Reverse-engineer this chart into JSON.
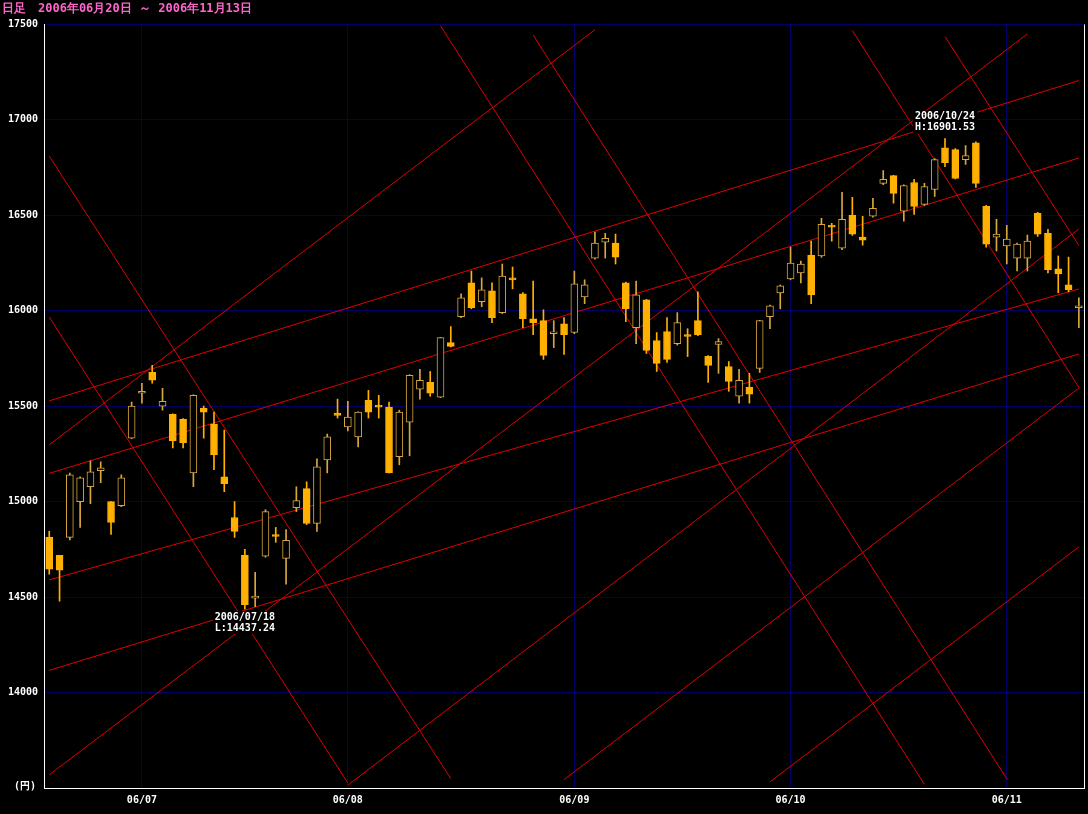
{
  "chart_data": {
    "type": "candlestick",
    "title": "日足　2006年06月20日 ～ 2006年11月13日",
    "ylabel": "(円)",
    "grid": true,
    "colors": [
      "#ffb000",
      "#ffb000",
      "#d8a840",
      "#d8a840",
      "#d8a840",
      "#d8a840",
      "#ffb000",
      "#d8a840",
      "#d8a840",
      "#d8a840",
      "#ffb000",
      "#d8a840",
      "#ffb000",
      "#ffb000",
      "#d8a840",
      "#ffb000",
      "#ffb000",
      "#ffb000",
      "#ffb000",
      "#ffb000",
      "#d8a840",
      "#d8a840",
      "#ffb000",
      "#d8a840",
      "#d8a840",
      "#ffb000",
      "#d8a840",
      "#d8a840",
      "#ffb000",
      "#d8a840",
      "#d8a840",
      "#ffb000",
      "#ffb000",
      "#ffb000",
      "#d8a840",
      "#d8a840",
      "#d8a840",
      "#ffb000",
      "#d8a840",
      "#ffb000",
      "#d8a840",
      "#ffb000",
      "#d8a840",
      "#ffb000",
      "#d8a840",
      "#ffb000",
      "#ffb000",
      "#ffb000",
      "#ffb000",
      "#d8a840",
      "#ffb000",
      "#d8a840",
      "#d8a840",
      "#d8a840",
      "#d8a840",
      "#ffb000",
      "#ffb000",
      "#d8a840",
      "#ffb000",
      "#ffb000",
      "#ffb000",
      "#d8a840",
      "#ffb000",
      "#ffb000",
      "#ffb000",
      "#d8a840",
      "#ffb000",
      "#d8a840",
      "#ffb000",
      "#d8a840",
      "#d8a840",
      "#d8a840",
      "#d8a840",
      "#d8a840",
      "#ffb000",
      "#d8a840",
      "#ffb000",
      "#d8a840",
      "#ffb000",
      "#ffb000",
      "#d8a840",
      "#d8a840",
      "#ffb000",
      "#d8a840",
      "#ffb000",
      "#d8a840",
      "#d8a840",
      "#ffb000",
      "#ffb000",
      "#d8a840",
      "#ffb000",
      "#ffb000",
      "#d8a840",
      "#d8a840",
      "#d8a840",
      "#d8a840",
      "#ffb000",
      "#ffb000",
      "#ffb000",
      "#ffb000",
      "#d8a840"
    ],
    "categories": [
      null,
      null,
      null,
      null,
      null,
      null,
      null,
      null,
      null,
      "06/07",
      null,
      null,
      null,
      null,
      null,
      null,
      null,
      null,
      null,
      null,
      null,
      null,
      null,
      null,
      null,
      null,
      null,
      null,
      null,
      "06/08",
      null,
      null,
      null,
      null,
      null,
      null,
      null,
      null,
      null,
      null,
      null,
      null,
      null,
      null,
      null,
      null,
      null,
      null,
      null,
      null,
      null,
      "06/09",
      null,
      null,
      null,
      null,
      null,
      null,
      null,
      null,
      null,
      null,
      null,
      null,
      null,
      null,
      null,
      null,
      null,
      null,
      null,
      null,
      "06/10",
      null,
      null,
      null,
      null,
      null,
      null,
      null,
      null,
      null,
      null,
      null,
      null,
      null,
      null,
      null,
      null,
      null,
      null,
      null,
      null,
      "06/11",
      null,
      null,
      null,
      null,
      null,
      null,
      null
    ],
    "ylim": [
      13500,
      17500
    ],
    "yticks": [
      14000,
      14500,
      15000,
      15500,
      16000,
      16500,
      17000,
      17500
    ],
    "ohlc": [
      [
        14813,
        14844,
        14620,
        14646
      ],
      [
        14719,
        14719,
        14479,
        14641
      ],
      [
        14813,
        15150,
        14800,
        15141
      ],
      [
        15000,
        15130,
        14865,
        15125
      ],
      [
        15078,
        15214,
        14990,
        15156
      ],
      [
        15162,
        15208,
        15099,
        15177
      ],
      [
        15000,
        15000,
        14828,
        14891
      ],
      [
        14979,
        15141,
        14974,
        15125
      ],
      [
        15333,
        15521,
        15330,
        15500
      ],
      [
        15568,
        15620,
        15516,
        15578
      ],
      [
        15677,
        15714,
        15620,
        15636
      ],
      [
        15500,
        15594,
        15479,
        15526
      ],
      [
        15458,
        15460,
        15281,
        15318
      ],
      [
        15432,
        15435,
        15281,
        15307
      ],
      [
        15151,
        15560,
        15078,
        15557
      ],
      [
        15490,
        15500,
        15333,
        15469
      ],
      [
        15406,
        15469,
        15167,
        15245
      ],
      [
        15130,
        15375,
        15052,
        15094
      ],
      [
        14917,
        15000,
        14813,
        14844
      ],
      [
        14719,
        14750,
        14437.24,
        14460
      ],
      [
        14495,
        14630,
        14450,
        14505
      ],
      [
        14714,
        14958,
        14709,
        14948
      ],
      [
        14828,
        14865,
        14787,
        14818
      ],
      [
        14703,
        14854,
        14568,
        14797
      ],
      [
        14969,
        15078,
        14948,
        15005
      ],
      [
        15068,
        15104,
        14880,
        14886
      ],
      [
        14886,
        15224,
        14844,
        15182
      ],
      [
        15219,
        15354,
        15151,
        15339
      ],
      [
        15462,
        15537,
        15438,
        15452
      ],
      [
        15391,
        15526,
        15370,
        15443
      ],
      [
        15339,
        15470,
        15287,
        15469
      ],
      [
        15531,
        15583,
        15438,
        15469
      ],
      [
        15505,
        15557,
        15438,
        15495
      ],
      [
        15495,
        15521,
        15150,
        15151
      ],
      [
        15235,
        15479,
        15193,
        15469
      ],
      [
        15417,
        15665,
        15240,
        15662
      ],
      [
        15589,
        15693,
        15537,
        15636
      ],
      [
        15625,
        15682,
        15552,
        15568
      ],
      [
        15547,
        15860,
        15545,
        15859
      ],
      [
        15833,
        15917,
        15810,
        15813
      ],
      [
        15969,
        16089,
        15964,
        16068
      ],
      [
        16146,
        16208,
        16010,
        16016
      ],
      [
        16047,
        16172,
        16021,
        16109
      ],
      [
        16104,
        16146,
        15938,
        15964
      ],
      [
        15990,
        16245,
        15985,
        16182
      ],
      [
        16172,
        16229,
        16115,
        16162
      ],
      [
        16089,
        16095,
        15912,
        15958
      ],
      [
        15958,
        16156,
        15875,
        15938
      ],
      [
        15948,
        16005,
        15745,
        15766
      ],
      [
        15880,
        15948,
        15807,
        15890
      ],
      [
        15932,
        15964,
        15771,
        15875
      ],
      [
        15886,
        16208,
        15880,
        16141
      ],
      [
        16073,
        16162,
        16037,
        16136
      ],
      [
        16276,
        16412,
        16270,
        16354
      ],
      [
        16359,
        16406,
        16276,
        16380
      ],
      [
        16354,
        16401,
        16245,
        16281
      ],
      [
        16146,
        16150,
        15943,
        16010
      ],
      [
        15911,
        16156,
        15828,
        16083
      ],
      [
        16057,
        16060,
        15776,
        15792
      ],
      [
        15844,
        15886,
        15682,
        15724
      ],
      [
        15891,
        15964,
        15729,
        15745
      ],
      [
        15828,
        15990,
        15820,
        15938
      ],
      [
        15875,
        15906,
        15760,
        15865
      ],
      [
        15948,
        16099,
        15870,
        15875
      ],
      [
        15761,
        15765,
        15625,
        15714
      ],
      [
        15823,
        15854,
        15672,
        15838
      ],
      [
        15708,
        15734,
        15578,
        15630
      ],
      [
        15552,
        15693,
        15516,
        15636
      ],
      [
        15599,
        15672,
        15516,
        15563
      ],
      [
        15698,
        15950,
        15677,
        15948
      ],
      [
        15969,
        16030,
        15906,
        16026
      ],
      [
        16094,
        16135,
        16010,
        16130
      ],
      [
        16167,
        16333,
        16162,
        16250
      ],
      [
        16198,
        16260,
        16146,
        16245
      ],
      [
        16292,
        16365,
        16037,
        16083
      ],
      [
        16287,
        16484,
        16280,
        16453
      ],
      [
        16448,
        16458,
        16365,
        16438
      ],
      [
        16328,
        16620,
        16320,
        16479
      ],
      [
        16500,
        16594,
        16395,
        16401
      ],
      [
        16386,
        16495,
        16344,
        16370
      ],
      [
        16495,
        16589,
        16490,
        16537
      ],
      [
        16667,
        16734,
        16660,
        16688
      ],
      [
        16708,
        16710,
        16563,
        16615
      ],
      [
        16521,
        16660,
        16469,
        16656
      ],
      [
        16672,
        16688,
        16505,
        16547
      ],
      [
        16557,
        16667,
        16552,
        16651
      ],
      [
        16635,
        16797,
        16599,
        16792
      ],
      [
        16854,
        16901.53,
        16755,
        16776
      ],
      [
        16844,
        16850,
        16690,
        16693
      ],
      [
        16792,
        16865,
        16766,
        16813
      ],
      [
        16880,
        16885,
        16646,
        16667
      ],
      [
        16547,
        16552,
        16333,
        16349
      ],
      [
        16386,
        16479,
        16313,
        16401
      ],
      [
        16339,
        16448,
        16245,
        16375
      ],
      [
        16276,
        16355,
        16208,
        16349
      ],
      [
        16276,
        16396,
        16208,
        16365
      ],
      [
        16510,
        16516,
        16390,
        16401
      ],
      [
        16406,
        16427,
        16198,
        16214
      ],
      [
        16219,
        16287,
        16094,
        16193
      ],
      [
        16136,
        16281,
        16099,
        16110
      ],
      [
        16016,
        16068,
        15912,
        16026
      ]
    ],
    "series": [
      {
        "type": "line",
        "color": "#e00000",
        "values": [
          15528,
          null,
          null,
          null,
          null,
          null,
          null,
          null,
          null,
          null,
          null,
          null,
          null,
          null,
          null,
          null,
          null,
          null,
          null,
          null,
          null,
          null,
          null,
          null,
          null,
          null,
          null,
          null,
          null,
          null,
          null,
          null,
          null,
          null,
          null,
          null,
          null,
          null,
          null,
          null,
          null,
          null,
          null,
          null,
          null,
          null,
          null,
          null,
          null,
          null,
          null,
          null,
          null,
          null,
          null,
          null,
          null,
          null,
          null,
          null,
          null,
          null,
          null,
          null,
          null,
          null,
          null,
          null,
          null,
          null,
          null,
          null,
          null,
          null,
          null,
          null,
          null,
          null,
          null,
          null,
          null,
          null,
          null,
          null,
          null,
          null,
          null,
          null,
          null,
          null,
          null,
          null,
          null,
          null,
          null,
          null,
          null,
          null,
          null,
          null,
          17206
        ]
      },
      {
        "type": "line",
        "color": "#e00000",
        "values": [
          15148,
          null,
          null,
          null,
          null,
          null,
          null,
          null,
          null,
          null,
          null,
          null,
          null,
          null,
          null,
          null,
          null,
          null,
          null,
          null,
          null,
          null,
          null,
          null,
          null,
          null,
          null,
          null,
          null,
          null,
          null,
          null,
          null,
          null,
          null,
          null,
          null,
          null,
          null,
          null,
          null,
          null,
          null,
          null,
          null,
          null,
          null,
          null,
          null,
          null,
          null,
          null,
          null,
          null,
          null,
          null,
          null,
          null,
          null,
          null,
          null,
          null,
          null,
          null,
          null,
          null,
          null,
          null,
          null,
          null,
          null,
          null,
          null,
          null,
          null,
          null,
          null,
          null,
          null,
          null,
          null,
          null,
          null,
          null,
          null,
          null,
          null,
          null,
          null,
          null,
          null,
          null,
          null,
          null,
          null,
          null,
          null,
          null,
          null,
          null,
          16800
        ]
      },
      {
        "type": "line",
        "color": "#e00000",
        "values": [
          14590,
          null,
          null,
          null,
          null,
          null,
          null,
          null,
          null,
          null,
          null,
          null,
          null,
          null,
          null,
          null,
          null,
          null,
          null,
          null,
          null,
          null,
          null,
          null,
          null,
          null,
          null,
          null,
          null,
          null,
          null,
          null,
          null,
          null,
          null,
          null,
          null,
          null,
          null,
          null,
          null,
          null,
          null,
          null,
          null,
          null,
          null,
          null,
          null,
          null,
          null,
          null,
          null,
          null,
          null,
          null,
          null,
          null,
          null,
          null,
          null,
          null,
          null,
          null,
          null,
          null,
          null,
          null,
          null,
          null,
          null,
          null,
          null,
          null,
          null,
          null,
          null,
          null,
          null,
          null,
          null,
          null,
          null,
          null,
          null,
          null,
          null,
          null,
          null,
          null,
          null,
          null,
          null,
          null,
          null,
          null,
          null,
          null,
          null,
          null,
          16114
        ]
      },
      {
        "type": "line",
        "color": "#e00000",
        "values": [
          14116,
          null,
          null,
          null,
          null,
          null,
          null,
          null,
          null,
          null,
          null,
          null,
          null,
          null,
          null,
          null,
          null,
          null,
          null,
          null,
          null,
          null,
          null,
          null,
          null,
          null,
          null,
          null,
          null,
          null,
          null,
          null,
          null,
          null,
          null,
          null,
          null,
          null,
          null,
          null,
          null,
          null,
          null,
          null,
          null,
          null,
          null,
          null,
          null,
          null,
          null,
          null,
          null,
          null,
          null,
          null,
          null,
          null,
          null,
          null,
          null,
          null,
          null,
          null,
          null,
          null,
          null,
          null,
          null,
          null,
          null,
          null,
          null,
          null,
          null,
          null,
          null,
          null,
          null,
          null,
          null,
          null,
          null,
          null,
          null,
          null,
          null,
          null,
          null,
          null,
          null,
          null,
          null,
          null,
          null,
          null,
          null,
          null,
          null,
          null,
          15774
        ]
      },
      {
        "type": "line",
        "color": "#e00000",
        "values": [
          15298,
          null,
          null,
          null,
          null,
          null,
          null,
          null,
          null,
          null,
          null,
          null,
          null,
          null,
          null,
          null,
          null,
          null,
          null,
          null,
          null,
          null,
          null,
          null,
          null,
          null,
          null,
          null,
          null,
          null,
          null,
          null,
          null,
          null,
          null,
          null,
          null,
          null,
          null,
          null,
          null,
          null,
          null,
          null,
          null,
          null,
          null,
          null,
          null,
          null,
          null,
          null,
          null,
          17472,
          null,
          null,
          null,
          null,
          null,
          null,
          null,
          null,
          null,
          null,
          null,
          null,
          null,
          null,
          null,
          null,
          null,
          null,
          null,
          null,
          null,
          null,
          null,
          null,
          null,
          null,
          null,
          null,
          null,
          null,
          null,
          null,
          null,
          null,
          null,
          null,
          null,
          null,
          null,
          null,
          null,
          null,
          null,
          null,
          null,
          null,
          null
        ]
      },
      {
        "type": "line",
        "color": "#e00000",
        "values": [
          13569,
          null,
          null,
          null,
          null,
          null,
          null,
          null,
          null,
          null,
          null,
          null,
          null,
          null,
          null,
          null,
          null,
          null,
          null,
          null,
          null,
          null,
          null,
          null,
          null,
          null,
          null,
          null,
          null,
          null,
          null,
          null,
          null,
          null,
          null,
          null,
          null,
          null,
          null,
          null,
          null,
          null,
          null,
          null,
          null,
          null,
          null,
          null,
          null,
          null,
          null,
          null,
          null,
          null,
          null,
          null,
          null,
          null,
          null,
          null,
          null,
          null,
          null,
          null,
          null,
          null,
          null,
          null,
          null,
          null,
          null,
          null,
          null,
          null,
          null,
          null,
          null,
          null,
          null,
          null,
          null,
          null,
          null,
          null,
          null,
          null,
          null,
          null,
          null,
          null,
          null,
          null,
          null,
          null,
          null,
          17450,
          null,
          null,
          null,
          null,
          null
        ]
      },
      {
        "type": "line",
        "color": "#e00000",
        "values": [
          null,
          null,
          null,
          null,
          null,
          null,
          null,
          null,
          null,
          null,
          null,
          null,
          null,
          null,
          null,
          null,
          null,
          null,
          null,
          null,
          null,
          null,
          null,
          null,
          null,
          null,
          null,
          null,
          null,
          13515,
          null,
          null,
          null,
          null,
          null,
          null,
          null,
          null,
          null,
          null,
          null,
          null,
          null,
          null,
          null,
          null,
          null,
          null,
          null,
          null,
          null,
          null,
          null,
          null,
          null,
          null,
          null,
          null,
          null,
          null,
          null,
          null,
          null,
          null,
          null,
          null,
          null,
          null,
          null,
          null,
          null,
          null,
          null,
          null,
          null,
          null,
          null,
          null,
          null,
          null,
          null,
          null,
          null,
          null,
          null,
          null,
          null,
          null,
          null,
          null,
          null,
          null,
          null,
          null,
          null,
          null,
          null,
          null,
          null,
          null,
          16428
        ]
      },
      {
        "type": "line",
        "color": "#e00000",
        "values": [
          null,
          null,
          null,
          null,
          null,
          null,
          null,
          null,
          null,
          null,
          null,
          null,
          null,
          null,
          null,
          null,
          null,
          null,
          null,
          null,
          null,
          null,
          null,
          null,
          null,
          null,
          null,
          null,
          null,
          null,
          null,
          null,
          null,
          null,
          null,
          null,
          null,
          null,
          null,
          null,
          null,
          null,
          null,
          null,
          null,
          null,
          null,
          null,
          null,
          null,
          13544,
          null,
          null,
          null,
          null,
          null,
          null,
          null,
          null,
          null,
          null,
          null,
          null,
          null,
          null,
          null,
          null,
          null,
          null,
          null,
          null,
          null,
          null,
          null,
          null,
          null,
          null,
          null,
          null,
          null,
          null,
          null,
          null,
          null,
          null,
          null,
          null,
          null,
          null,
          null,
          null,
          null,
          null,
          null,
          null,
          null,
          null,
          null,
          null,
          null,
          15595
        ]
      },
      {
        "type": "line",
        "color": "#e00000",
        "values": [
          null,
          null,
          null,
          null,
          null,
          null,
          null,
          null,
          null,
          null,
          null,
          null,
          null,
          null,
          null,
          null,
          null,
          null,
          null,
          null,
          null,
          null,
          null,
          null,
          null,
          null,
          null,
          null,
          null,
          null,
          null,
          null,
          null,
          null,
          null,
          null,
          null,
          null,
          null,
          null,
          null,
          null,
          null,
          null,
          null,
          null,
          null,
          null,
          null,
          null,
          null,
          null,
          null,
          null,
          null,
          null,
          null,
          null,
          null,
          null,
          null,
          null,
          null,
          null,
          null,
          null,
          null,
          null,
          null,
          null,
          13532,
          null,
          null,
          null,
          null,
          null,
          null,
          null,
          null,
          null,
          null,
          null,
          null,
          null,
          null,
          null,
          null,
          null,
          null,
          null,
          null,
          null,
          null,
          null,
          null,
          null,
          null,
          null,
          null,
          null,
          14763
        ]
      },
      {
        "type": "line",
        "color": "#e00000",
        "values": [
          16810,
          null,
          null,
          null,
          null,
          null,
          null,
          null,
          null,
          null,
          null,
          null,
          null,
          null,
          null,
          null,
          null,
          null,
          null,
          null,
          null,
          null,
          null,
          null,
          null,
          null,
          null,
          null,
          null,
          null,
          null,
          null,
          null,
          null,
          null,
          null,
          null,
          null,
          null,
          13549,
          null,
          null,
          null,
          null,
          null,
          null,
          null,
          null,
          null,
          null,
          null,
          null,
          null,
          null,
          null,
          null,
          null,
          null,
          null,
          null,
          null,
          null,
          null,
          null,
          null,
          null,
          null,
          null,
          null,
          null,
          null,
          null,
          null,
          null,
          null,
          null,
          null,
          null,
          null,
          null,
          null,
          null,
          null,
          null,
          null,
          null,
          null,
          null,
          null,
          null,
          null,
          null,
          null,
          null,
          null,
          null,
          null,
          null,
          null,
          null,
          null
        ]
      },
      {
        "type": "line",
        "color": "#e00000",
        "values": [
          15967,
          null,
          null,
          null,
          null,
          null,
          null,
          null,
          null,
          null,
          null,
          null,
          null,
          null,
          null,
          null,
          null,
          null,
          null,
          null,
          null,
          null,
          null,
          null,
          null,
          null,
          null,
          null,
          null,
          13526,
          null,
          null,
          null,
          null,
          null,
          null,
          null,
          null,
          null,
          null,
          null,
          null,
          null,
          null,
          null,
          null,
          null,
          null,
          null,
          null,
          null,
          null,
          null,
          null,
          null,
          null,
          null,
          null,
          null,
          null,
          null,
          null,
          null,
          null,
          null,
          null,
          null,
          null,
          null,
          null,
          null,
          null,
          null,
          null,
          null,
          null,
          null,
          null,
          null,
          null,
          null,
          null,
          null,
          null,
          null,
          null,
          null,
          null,
          null,
          null,
          null,
          null,
          null,
          null,
          null,
          null,
          null,
          null,
          null,
          null,
          null
        ]
      },
      {
        "type": "line",
        "color": "#e00000",
        "values": [
          null,
          null,
          null,
          null,
          null,
          null,
          null,
          null,
          null,
          null,
          null,
          null,
          null,
          null,
          null,
          null,
          null,
          null,
          null,
          null,
          null,
          null,
          null,
          null,
          null,
          null,
          null,
          null,
          null,
          null,
          null,
          null,
          null,
          null,
          null,
          null,
          null,
          null,
          17493,
          null,
          null,
          null,
          null,
          null,
          null,
          null,
          null,
          null,
          null,
          null,
          null,
          null,
          null,
          null,
          null,
          null,
          null,
          null,
          null,
          null,
          null,
          null,
          null,
          null,
          null,
          null,
          null,
          null,
          null,
          null,
          null,
          null,
          null,
          null,
          null,
          null,
          null,
          null,
          null,
          null,
          null,
          null,
          null,
          null,
          null,
          13519,
          null,
          null,
          null,
          null,
          null,
          null,
          null,
          null,
          null,
          null,
          null,
          null,
          null,
          null,
          null
        ]
      },
      {
        "type": "line",
        "color": "#e00000",
        "values": [
          null,
          null,
          null,
          null,
          null,
          null,
          null,
          null,
          null,
          null,
          null,
          null,
          null,
          null,
          null,
          null,
          null,
          null,
          null,
          null,
          null,
          null,
          null,
          null,
          null,
          null,
          null,
          null,
          null,
          null,
          null,
          null,
          null,
          null,
          null,
          null,
          null,
          null,
          null,
          null,
          null,
          null,
          null,
          null,
          null,
          null,
          null,
          17444,
          null,
          null,
          null,
          null,
          null,
          null,
          null,
          null,
          null,
          null,
          null,
          null,
          null,
          null,
          null,
          null,
          null,
          null,
          null,
          null,
          null,
          null,
          null,
          null,
          null,
          null,
          null,
          null,
          null,
          null,
          null,
          null,
          null,
          null,
          null,
          null,
          null,
          null,
          null,
          null,
          null,
          null,
          null,
          null,
          null,
          13548,
          null,
          null,
          null,
          null,
          null,
          null,
          null
        ]
      },
      {
        "type": "line",
        "color": "#e00000",
        "values": [
          null,
          null,
          null,
          null,
          null,
          null,
          null,
          null,
          null,
          null,
          null,
          null,
          null,
          null,
          null,
          null,
          null,
          null,
          null,
          null,
          null,
          null,
          null,
          null,
          null,
          null,
          null,
          null,
          null,
          null,
          null,
          null,
          null,
          null,
          null,
          null,
          null,
          null,
          null,
          null,
          null,
          null,
          null,
          null,
          null,
          null,
          null,
          null,
          null,
          null,
          null,
          null,
          null,
          null,
          null,
          null,
          null,
          null,
          null,
          null,
          null,
          null,
          null,
          null,
          null,
          null,
          null,
          null,
          null,
          null,
          null,
          null,
          null,
          null,
          null,
          null,
          null,
          null,
          17468,
          null,
          null,
          null,
          null,
          null,
          null,
          null,
          null,
          null,
          null,
          null,
          null,
          null,
          null,
          null,
          null,
          null,
          null,
          null,
          null,
          null,
          15599
        ]
      },
      {
        "type": "line",
        "color": "#e00000",
        "values": [
          null,
          null,
          null,
          null,
          null,
          null,
          null,
          null,
          null,
          null,
          null,
          null,
          null,
          null,
          null,
          null,
          null,
          null,
          null,
          null,
          null,
          null,
          null,
          null,
          null,
          null,
          null,
          null,
          null,
          null,
          null,
          null,
          null,
          null,
          null,
          null,
          null,
          null,
          null,
          null,
          null,
          null,
          null,
          null,
          null,
          null,
          null,
          null,
          null,
          null,
          null,
          null,
          null,
          null,
          null,
          null,
          null,
          null,
          null,
          null,
          null,
          null,
          null,
          null,
          null,
          null,
          null,
          null,
          null,
          null,
          null,
          null,
          null,
          null,
          null,
          null,
          null,
          null,
          null,
          null,
          null,
          null,
          null,
          null,
          null,
          null,
          null,
          17436,
          null,
          null,
          null,
          null,
          null,
          null,
          null,
          null,
          null,
          null,
          null,
          null,
          16342
        ]
      }
    ],
    "annotations": [
      {
        "text": "2006/07/18\nL:14437.24",
        "y": 14437.24
      },
      {
        "text": "2006/10/24\nH:16901.53",
        "y": 16901.53
      }
    ]
  }
}
